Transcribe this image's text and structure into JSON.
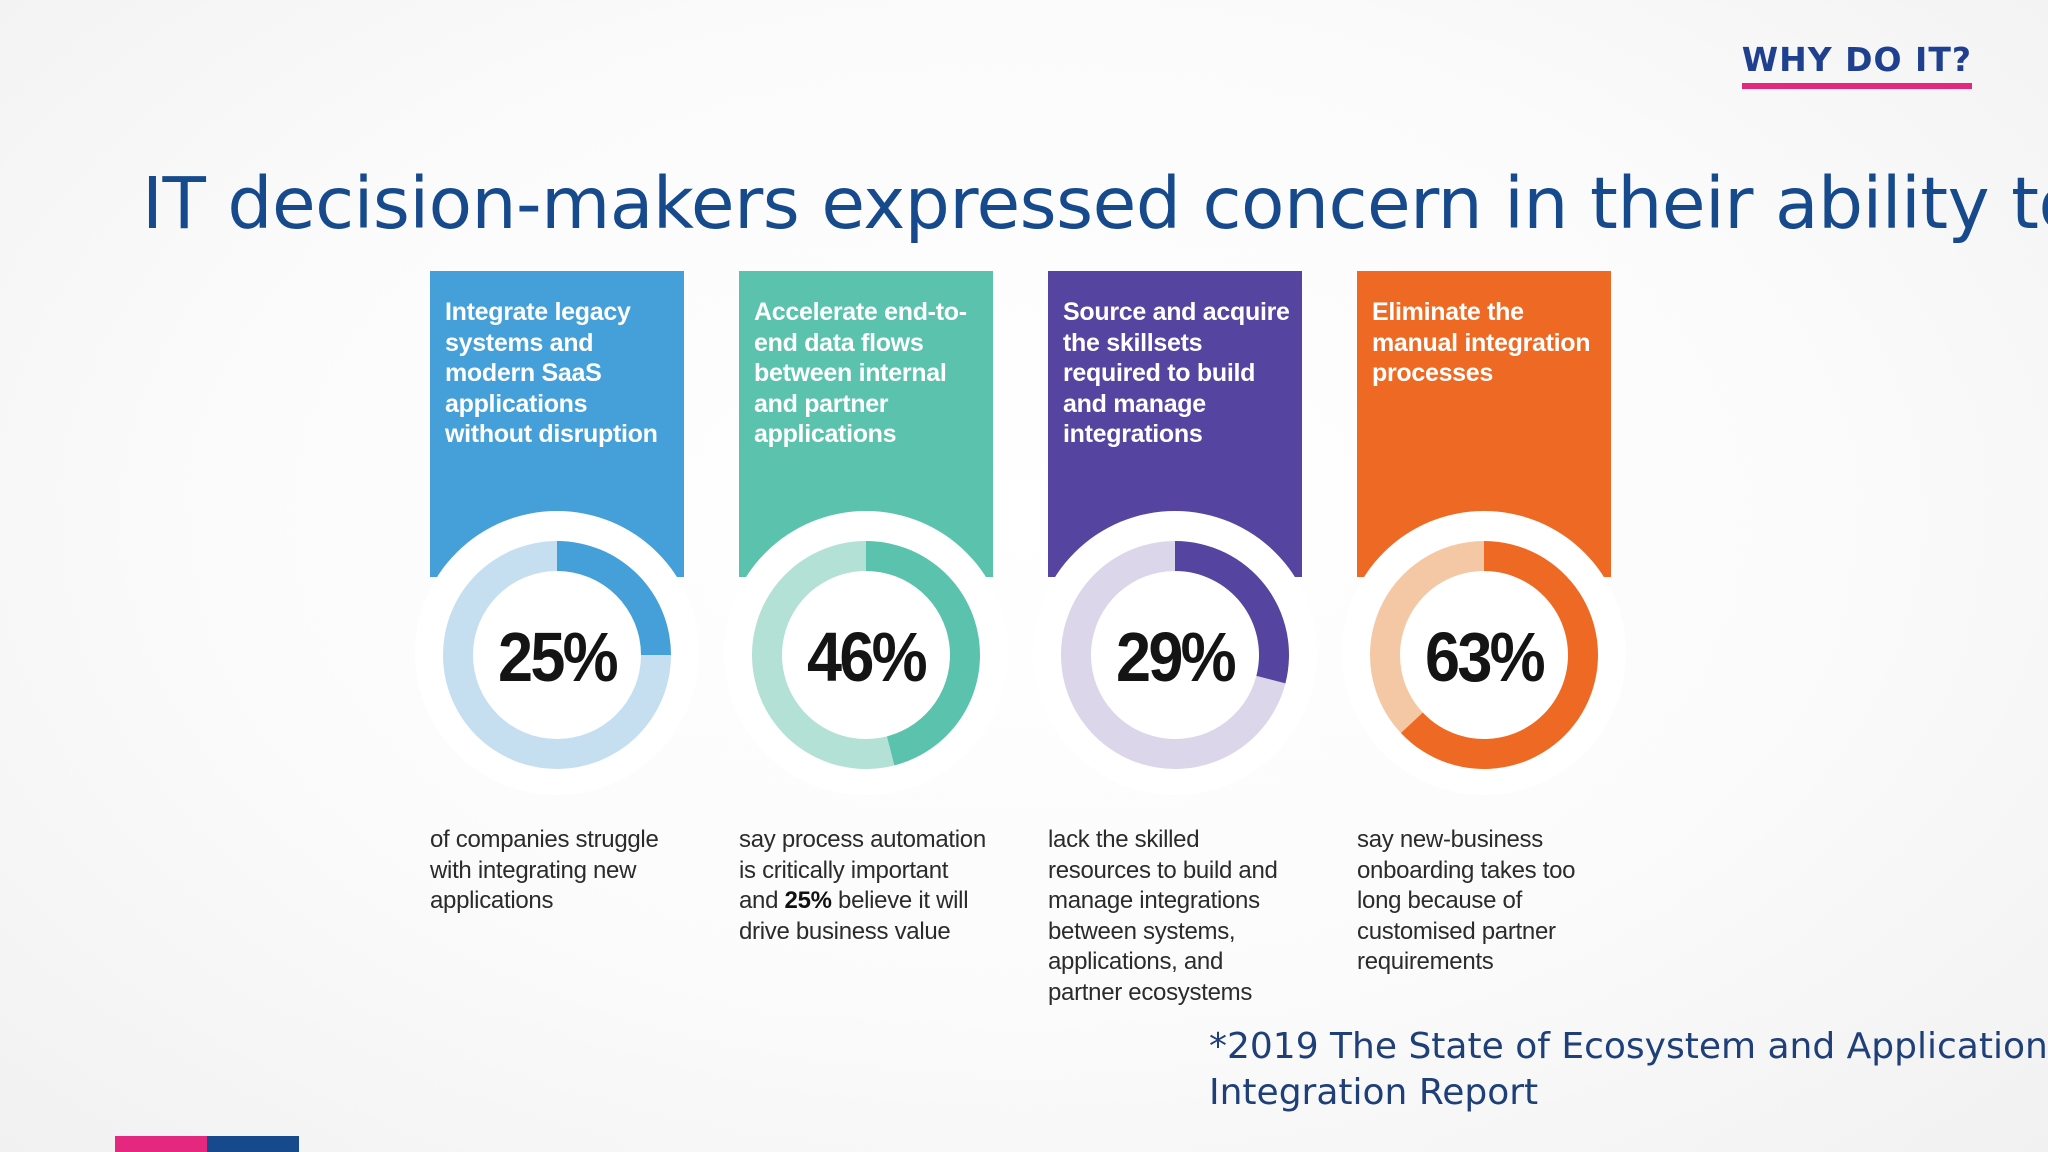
{
  "header": {
    "tag": "WHY DO IT?"
  },
  "title": "IT decision-makers expressed concern in their ability to:",
  "chart_data": {
    "type": "donut",
    "items": [
      {
        "heading": "Integrate legacy systems and modern SaaS applications without disruption",
        "value": 25,
        "label": "25%",
        "desc_before": "of companies struggle with integrating new applications",
        "desc_bold": "",
        "desc_after": "",
        "color": "#45a0da",
        "light_color": "#c5dff1"
      },
      {
        "heading": "Accelerate end-to-end data flows between internal and partner applications",
        "value": 46,
        "label": "46%",
        "desc_before": "say process automation is critically important and ",
        "desc_bold": "25%",
        "desc_after": " believe it will drive business value",
        "color": "#5bc3ad",
        "light_color": "#b3e1d6"
      },
      {
        "heading": "Source and acquire the skillsets required to build and manage integrations",
        "value": 29,
        "label": "29%",
        "desc_before": "lack the skilled resources to build and manage integrations between systems, applications, and partner ecosystems",
        "desc_bold": "",
        "desc_after": "",
        "color": "#5645a0",
        "light_color": "#dcd6ea"
      },
      {
        "heading": "Eliminate the manual integration processes",
        "value": 63,
        "label": "63%",
        "desc_before": "say new-business onboarding takes too long because of customised partner requirements",
        "desc_bold": "",
        "desc_after": "",
        "color": "#ee6a24",
        "light_color": "#f5c8a5"
      }
    ]
  },
  "source": "*2019 The State of Ecosystem and Application Integration Report"
}
